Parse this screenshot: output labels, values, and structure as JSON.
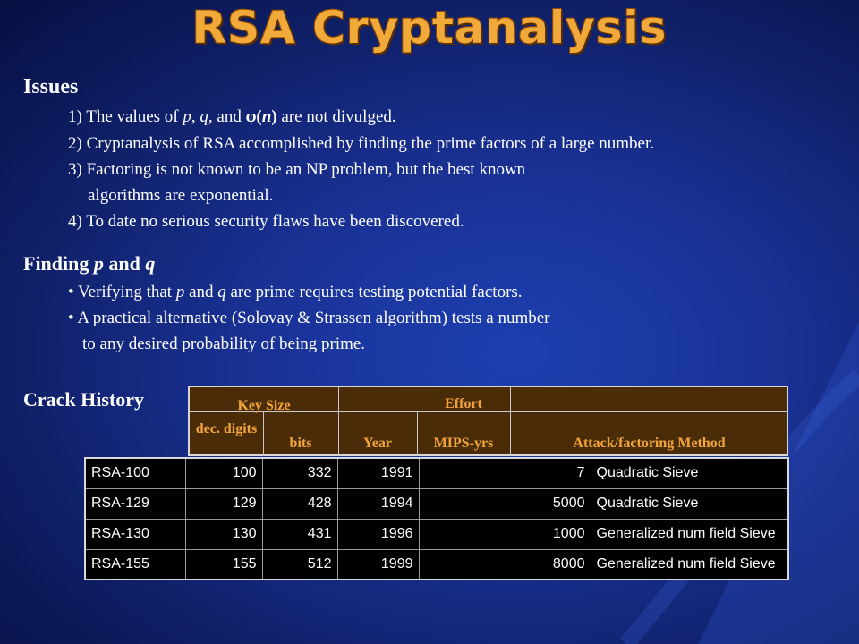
{
  "title": "RSA Cryptanalysis",
  "issues": {
    "heading": "Issues",
    "item1": {
      "a": "1) The values of ",
      "p": "p",
      "b": ", ",
      "q": "q",
      "c": ", and ",
      "phi": "φ(",
      "n": "n",
      "phi_close": ")",
      "d": " are not divulged."
    },
    "item2": "2) Cryptanalysis of RSA accomplished by finding the prime factors of a large number.",
    "item3a": "3) Factoring is not known to be an NP problem, but the best known",
    "item3b": "algorithms are exponential.",
    "item4": "4) To date no serious security flaws have been discovered."
  },
  "finding": {
    "heading_a": "Finding ",
    "heading_p": "p",
    "heading_b": " and ",
    "heading_q": "q",
    "bullet1": {
      "a": "• Verifying that ",
      "p": "p",
      "b": " and ",
      "q": "q",
      "c": " are prime requires testing potential factors."
    },
    "bullet2a": "• A practical alternative (Solovay & Strassen algorithm) tests a number",
    "bullet2b": "to any desired probability of being prime."
  },
  "crack_history": {
    "heading": "Crack History",
    "header": {
      "key_size": "Key Size",
      "effort": "Effort",
      "dec_digits": "dec. digits",
      "bits": "bits",
      "year": "Year",
      "mips_yrs": "MIPS-yrs",
      "method": "Attack/factoring Method"
    },
    "rows": [
      {
        "name": "RSA-100",
        "digits": "100",
        "bits": "332",
        "year": "1991",
        "mips": "7",
        "method": "Quadratic Sieve"
      },
      {
        "name": "RSA-129",
        "digits": "129",
        "bits": "428",
        "year": "1994",
        "mips": "5000",
        "method": "Quadratic Sieve"
      },
      {
        "name": "RSA-130",
        "digits": "130",
        "bits": "431",
        "year": "1996",
        "mips": "1000",
        "method": "Generalized num field Sieve"
      },
      {
        "name": "RSA-155",
        "digits": "155",
        "bits": "512",
        "year": "1999",
        "mips": "8000",
        "method": "Generalized num field Sieve"
      }
    ]
  }
}
